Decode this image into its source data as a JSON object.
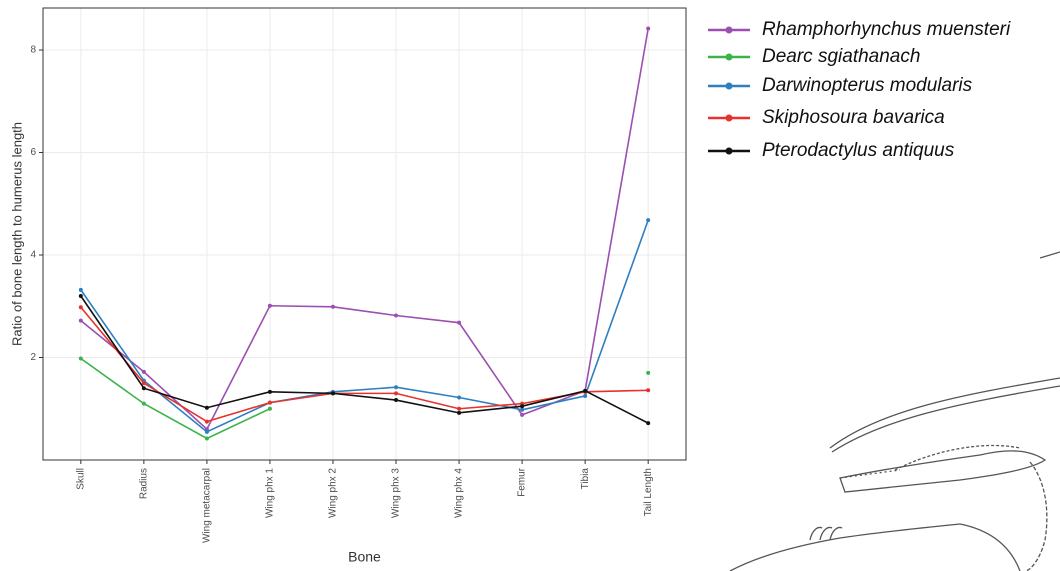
{
  "chart_data": {
    "type": "line",
    "x_label": "Bone",
    "y_label": "Ratio of bone length to humerus length",
    "categories": [
      "Skull",
      "Radius",
      "Wing metacarpal",
      "Wing phx 1",
      "Wing phx 2",
      "Wing phx 3",
      "Wing phx 4",
      "Femur",
      "Tibia",
      "Tail Length"
    ],
    "series": [
      {
        "name": "Rhamphorhynchus muensteri",
        "color": "#9b4fb0",
        "values": [
          2.72,
          1.72,
          0.6,
          3.01,
          2.99,
          2.82,
          2.68,
          0.88,
          1.35,
          8.42
        ]
      },
      {
        "name": "Dearc sgiathanach",
        "color": "#3cb34a",
        "values": [
          1.98,
          1.1,
          0.42,
          1.0,
          null,
          null,
          null,
          null,
          null,
          1.7
        ]
      },
      {
        "name": "Darwinopterus modularis",
        "color": "#2e7fc0",
        "values": [
          3.32,
          1.55,
          0.55,
          1.12,
          1.33,
          1.42,
          1.22,
          0.98,
          1.25,
          4.68
        ]
      },
      {
        "name": "Skiphosoura bavarica",
        "color": "#e8312b",
        "values": [
          2.98,
          1.5,
          0.75,
          1.12,
          1.3,
          1.3,
          1.0,
          1.1,
          1.33,
          1.36
        ]
      },
      {
        "name": "Pterodactylus antiquus",
        "color": "#111111",
        "values": [
          3.2,
          1.4,
          1.02,
          1.33,
          1.3,
          1.17,
          0.92,
          1.05,
          1.35,
          0.72
        ]
      }
    ],
    "ylim": [
      0,
      8.82
    ],
    "yticks": [
      2,
      4,
      6,
      8
    ],
    "grid": true
  }
}
